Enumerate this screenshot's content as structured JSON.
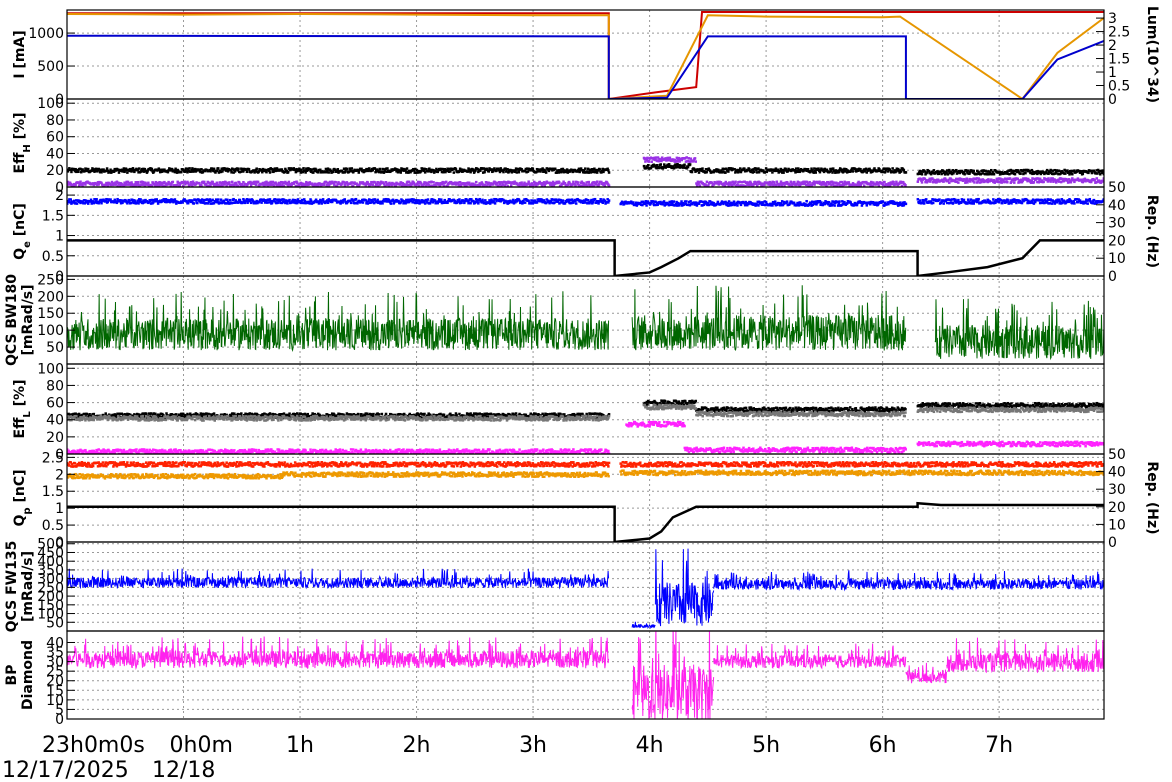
{
  "time_axis": {
    "labels": [
      "23h0m0s",
      "0h0m",
      "1h",
      "2h",
      "3h",
      "4h",
      "5h",
      "6h",
      "7h"
    ],
    "hours": [
      0,
      1,
      2,
      3,
      4,
      5,
      6,
      7,
      8
    ],
    "start_date": "12/17/2025",
    "second_date": "12/18",
    "xlim": [
      0,
      8.9
    ]
  },
  "chart_data": [
    {
      "type": "line",
      "ylabel": "I [mA]",
      "ylim": [
        0,
        1350
      ],
      "y_ticks": [
        0,
        500,
        1000
      ],
      "y2label": "Lum(10^34)",
      "y2lim": [
        0,
        3.3
      ],
      "y2_ticks": [
        "0",
        "0.5",
        "1",
        "1.5",
        "2",
        "2.5",
        "3"
      ],
      "colors": {
        "her": "#cc0000",
        "ler": "#e69600",
        "lum": "#0000cc"
      },
      "series": [
        {
          "color": "#cc0000",
          "x": [
            0,
            4.65,
            4.65,
            5.05,
            5.4,
            5.45,
            8.98
          ],
          "y": [
            1300,
            1300,
            0,
            100,
            180,
            1320,
            1320
          ]
        },
        {
          "color": "#e69600",
          "x": [
            0,
            1,
            2,
            3,
            4,
            4.65,
            4.65,
            5.15,
            5.5,
            6,
            7,
            7.15,
            8.2,
            8.5,
            8.9
          ],
          "y": [
            1290,
            1280,
            1290,
            1280,
            1270,
            1270,
            0,
            50,
            1270,
            1250,
            1240,
            1250,
            0,
            700,
            1230
          ]
        },
        {
          "color": "#0000cc",
          "x": [
            0,
            4.65,
            4.65,
            5.15,
            5.5,
            7.2,
            7.2,
            8.2,
            8.5,
            8.9
          ],
          "y": [
            960,
            950,
            0,
            20,
            950,
            950,
            0,
            0,
            600,
            880
          ]
        }
      ]
    },
    {
      "type": "scatter",
      "ylabel": "Eff_H [%]",
      "ylim": [
        0,
        105
      ],
      "y_ticks": [
        0,
        20,
        40,
        60,
        80,
        100
      ],
      "series": [
        {
          "color": "#000000",
          "level": [
            [
              0,
              4.65,
              20
            ],
            [
              4.95,
              5.35,
              25
            ],
            [
              5.35,
              7.2,
              20
            ],
            [
              7.3,
              8.9,
              18
            ]
          ]
        },
        {
          "color": "#9a33e6",
          "level": [
            [
              0,
              4.65,
              4
            ],
            [
              4.95,
              5.4,
              33
            ],
            [
              5.4,
              7.2,
              4
            ],
            [
              7.3,
              8.9,
              8
            ]
          ]
        }
      ]
    },
    {
      "type": "scatter",
      "ylabel": "Q_e [nC]",
      "ylim": [
        0,
        2.2
      ],
      "y_ticks": [
        "0",
        "0.5",
        "1",
        "1.5",
        "2"
      ],
      "y2label": "Rep. (Hz)",
      "y2lim": [
        0,
        50
      ],
      "y2_ticks": [
        "0",
        "10",
        "20",
        "30",
        "40",
        "50"
      ],
      "series": [
        {
          "color": "#0000ff",
          "level": [
            [
              0,
              4.65,
              1.85
            ],
            [
              4.75,
              7.2,
              1.8
            ],
            [
              7.3,
              8.9,
              1.85
            ]
          ]
        },
        {
          "color": "#000000",
          "steps": [
            [
              0,
              20
            ],
            [
              4.7,
              20
            ],
            [
              4.7,
              0
            ],
            [
              5.0,
              2
            ],
            [
              5.1,
              5
            ],
            [
              5.25,
              10
            ],
            [
              5.35,
              14
            ],
            [
              7.3,
              14
            ],
            [
              7.3,
              0
            ],
            [
              7.55,
              2
            ],
            [
              7.9,
              5
            ],
            [
              8.2,
              10
            ],
            [
              8.35,
              20
            ],
            [
              8.9,
              20
            ]
          ]
        }
      ]
    },
    {
      "type": "line",
      "ylabel": "QCS BW180 [mRad/s]",
      "ylim": [
        0,
        260
      ],
      "y_ticks": [
        50,
        100,
        150,
        200,
        250
      ],
      "series": [
        {
          "color": "#006600",
          "bands": [
            [
              0,
              4.65,
              45,
              140
            ],
            [
              4.85,
              7.2,
              45,
              150
            ],
            [
              7.45,
              8.9,
              20,
              120
            ]
          ]
        }
      ]
    },
    {
      "type": "scatter",
      "ylabel": "Eff_L [%]",
      "ylim": [
        0,
        105
      ],
      "y_ticks": [
        0,
        20,
        40,
        60,
        80,
        100
      ],
      "series": [
        {
          "color": "#000000",
          "level": [
            [
              0,
              4.65,
              45
            ],
            [
              4.95,
              5.4,
              60
            ],
            [
              5.4,
              7.2,
              52
            ],
            [
              7.3,
              8.9,
              57
            ]
          ]
        },
        {
          "color": "#777777",
          "level": [
            [
              0,
              4.65,
              42
            ],
            [
              4.95,
              5.4,
              55
            ],
            [
              5.4,
              7.2,
              47
            ],
            [
              7.3,
              8.9,
              52
            ]
          ]
        },
        {
          "color": "#ff22ff",
          "level": [
            [
              0,
              4.65,
              3
            ],
            [
              4.8,
              5.3,
              35
            ],
            [
              5.3,
              7.2,
              5
            ],
            [
              7.3,
              8.9,
              12
            ]
          ]
        }
      ]
    },
    {
      "type": "scatter",
      "ylabel": "Q_p [nC]",
      "ylim": [
        0,
        2.6
      ],
      "y_ticks": [
        "0",
        "0.5",
        "1",
        "1.5",
        "2",
        "2.5"
      ],
      "y2label": "Rep. (Hz)",
      "y2lim": [
        0,
        50
      ],
      "y2_ticks": [
        "0",
        "10",
        "20",
        "30",
        "40",
        "50"
      ],
      "series": [
        {
          "color": "#ff2200",
          "level": [
            [
              0,
              4.65,
              2.3
            ],
            [
              4.75,
              8.9,
              2.3
            ]
          ]
        },
        {
          "color": "#ee9900",
          "level": [
            [
              0,
              1.85,
              1.95
            ],
            [
              1.85,
              4.65,
              2.0
            ],
            [
              4.75,
              8.9,
              2.05
            ]
          ]
        },
        {
          "color": "#000000",
          "steps": [
            [
              0,
              20
            ],
            [
              4.7,
              20
            ],
            [
              4.7,
              0
            ],
            [
              5.0,
              2
            ],
            [
              5.1,
              6
            ],
            [
              5.2,
              14
            ],
            [
              5.4,
              20
            ],
            [
              7.3,
              20
            ],
            [
              7.3,
              22
            ],
            [
              7.5,
              21
            ],
            [
              8.9,
              21
            ]
          ]
        }
      ]
    },
    {
      "type": "line",
      "ylabel": "QCS FW135 [mRad/s]",
      "ylim": [
        0,
        510
      ],
      "y_ticks": [
        50,
        100,
        150,
        200,
        250,
        300,
        350,
        400,
        450,
        500
      ],
      "series": [
        {
          "color": "#0000ff",
          "bands": [
            [
              0,
              4.65,
              250,
              310
            ],
            [
              4.85,
              5.05,
              20,
              40
            ],
            [
              5.05,
              5.55,
              40,
              290
            ],
            [
              5.55,
              8.9,
              240,
              300
            ]
          ]
        }
      ]
    },
    {
      "type": "line",
      "ylabel": "BP Diamond",
      "ylim": [
        0,
        46
      ],
      "y_ticks": [
        0,
        5,
        10,
        15,
        20,
        25,
        30,
        35,
        40
      ],
      "series": [
        {
          "color": "#ff22ee",
          "bands": [
            [
              0,
              4.65,
              27,
              36
            ],
            [
              4.85,
              5.55,
              0,
              30
            ],
            [
              5.55,
              7.2,
              27,
              34
            ],
            [
              7.2,
              7.55,
              19,
              25
            ],
            [
              7.55,
              8.9,
              25,
              35
            ]
          ]
        }
      ]
    }
  ]
}
